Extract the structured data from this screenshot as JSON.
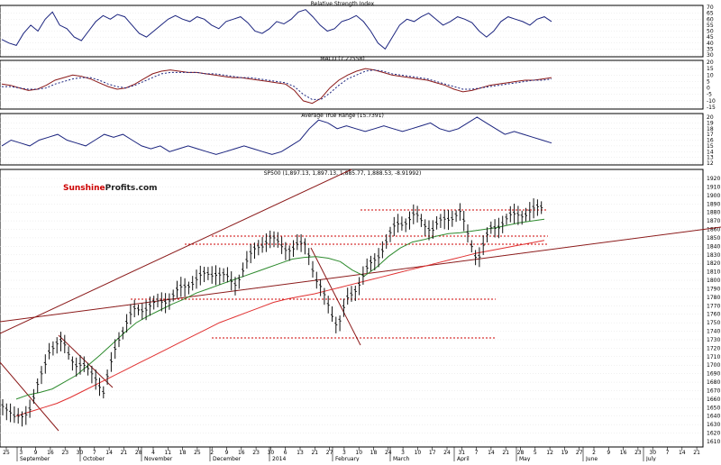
{
  "watermark": {
    "part1": "Sunshine",
    "part2": "Profits",
    "part3": ".com"
  },
  "colors": {
    "price": "#111111",
    "sma_green": "#2e8b2e",
    "sma_red": "#e03030",
    "trend_dark_red": "#8b1a1a",
    "indicator_blue": "#1a237e",
    "support_dotted": "#cc0000",
    "grid": "#c8c8c8"
  },
  "chart_data": [
    {
      "type": "line",
      "title": "Relative Strength Index",
      "ylim": [
        30,
        70
      ],
      "y_ticks": [
        30,
        35,
        40,
        45,
        50,
        55,
        60,
        65,
        70
      ],
      "series": [
        {
          "values": [
            43,
            40,
            38,
            48,
            55,
            50,
            60,
            66,
            55,
            52,
            45,
            42,
            50,
            58,
            63,
            60,
            64,
            62,
            55,
            48,
            45,
            50,
            55,
            60,
            63,
            60,
            58,
            62,
            60,
            55,
            52,
            58,
            60,
            62,
            57,
            50,
            48,
            52,
            58,
            56,
            60,
            66,
            68,
            62,
            55,
            50,
            52,
            58,
            60,
            63,
            58,
            50,
            40,
            35,
            45,
            55,
            60,
            58,
            62,
            65,
            60,
            55,
            58,
            62,
            60,
            57,
            50,
            45,
            50,
            58,
            62,
            60,
            58,
            55,
            60,
            62,
            58
          ]
        }
      ]
    },
    {
      "type": "line",
      "title": "MACD (7.27558)",
      "ylim": [
        -15,
        20
      ],
      "y_ticks": [
        -15,
        -10,
        -5,
        0,
        5,
        10,
        15,
        20
      ],
      "series": [
        {
          "values": [
            3,
            2,
            0,
            -2,
            -1,
            2,
            6,
            8,
            10,
            9,
            7,
            4,
            1,
            -1,
            0,
            3,
            7,
            11,
            13,
            14,
            13,
            12,
            12,
            11,
            10,
            9,
            8,
            8,
            7,
            6,
            5,
            4,
            3,
            -2,
            -10,
            -12,
            -8,
            0,
            6,
            10,
            13,
            15,
            14,
            12,
            10,
            9,
            8,
            7,
            6,
            4,
            2,
            -1,
            -3,
            -2,
            0,
            2,
            3,
            4,
            5,
            6,
            6,
            7,
            8
          ]
        },
        {
          "values": [
            1,
            1,
            0,
            -1,
            -1,
            0,
            3,
            5,
            7,
            8,
            8,
            6,
            3,
            1,
            0,
            2,
            5,
            8,
            11,
            12,
            12,
            12,
            12,
            11,
            11,
            10,
            9,
            8,
            8,
            7,
            6,
            5,
            4,
            1,
            -5,
            -9,
            -9,
            -4,
            2,
            7,
            10,
            13,
            14,
            13,
            11,
            10,
            9,
            8,
            7,
            5,
            3,
            1,
            -1,
            -1,
            0,
            1,
            2,
            3,
            4,
            5,
            6,
            6,
            7
          ]
        }
      ]
    },
    {
      "type": "line",
      "title": "Average True Range (15.7391)",
      "ylim": [
        12,
        20
      ],
      "y_ticks": [
        12,
        13,
        14,
        15,
        16,
        17,
        18,
        19,
        20
      ],
      "series": [
        {
          "values": [
            15,
            16,
            15.5,
            15,
            16,
            16.5,
            17,
            16,
            15.5,
            15,
            16,
            17,
            16.5,
            17,
            16,
            15,
            14.5,
            15,
            14,
            14.5,
            15,
            14.5,
            14,
            13.5,
            14,
            14.5,
            15,
            14.5,
            14,
            13.5,
            14,
            15,
            16,
            18,
            19.5,
            19,
            18,
            18.5,
            18,
            17.5,
            18,
            18.5,
            18,
            17.5,
            18,
            18.5,
            19,
            18,
            17.5,
            18,
            19,
            20,
            19,
            18,
            17,
            17.5,
            17,
            16.5,
            16,
            15.5
          ]
        }
      ]
    },
    {
      "type": "bar",
      "title": "SP500 (1,897.13, 1,897.13, 1,885.77, 1,888.53, -8.91992)",
      "ylim": [
        1610,
        1920
      ],
      "y_ticks": [
        1610,
        1620,
        1630,
        1640,
        1650,
        1660,
        1670,
        1680,
        1690,
        1700,
        1710,
        1720,
        1730,
        1740,
        1750,
        1760,
        1770,
        1780,
        1790,
        1800,
        1810,
        1820,
        1830,
        1840,
        1850,
        1860,
        1870,
        1880,
        1890,
        1900,
        1910,
        1920
      ],
      "x_tick_labels": [
        "25",
        "3",
        "9",
        "16",
        "23",
        "30",
        "7",
        "14",
        "21",
        "28",
        "4",
        "11",
        "18",
        "25",
        "2",
        "9",
        "16",
        "23",
        "30",
        "6",
        "13",
        "21",
        "27",
        "3",
        "10",
        "18",
        "24",
        "3",
        "10",
        "17",
        "24",
        "31",
        "7",
        "14",
        "21",
        "28",
        "5",
        "12",
        "19",
        "27",
        "2",
        "9",
        "16",
        "23",
        "30",
        "7",
        "14",
        "21"
      ],
      "month_labels": [
        "September",
        "October",
        "November",
        "December",
        "2014",
        "February",
        "March",
        "April",
        "May",
        "June",
        "July"
      ],
      "sma_50": [
        1660,
        1665,
        1668,
        1672,
        1680,
        1688,
        1700,
        1712,
        1725,
        1738,
        1750,
        1758,
        1765,
        1772,
        1778,
        1785,
        1790,
        1795,
        1800,
        1805,
        1810,
        1815,
        1820,
        1825,
        1827,
        1828,
        1826,
        1822,
        1812,
        1805,
        1815,
        1828,
        1838,
        1845,
        1848,
        1852,
        1855,
        1856,
        1858,
        1860,
        1862,
        1865,
        1868,
        1870,
        1872
      ],
      "sma_200": [
        1640,
        1645,
        1650,
        1655,
        1662,
        1670,
        1678,
        1686,
        1694,
        1702,
        1710,
        1718,
        1726,
        1734,
        1742,
        1750,
        1756,
        1762,
        1768,
        1774,
        1778,
        1781,
        1784,
        1788,
        1792,
        1796,
        1800,
        1804,
        1808,
        1812,
        1816,
        1820,
        1824,
        1828,
        1832,
        1835,
        1838,
        1841,
        1844,
        1847
      ]
    }
  ]
}
